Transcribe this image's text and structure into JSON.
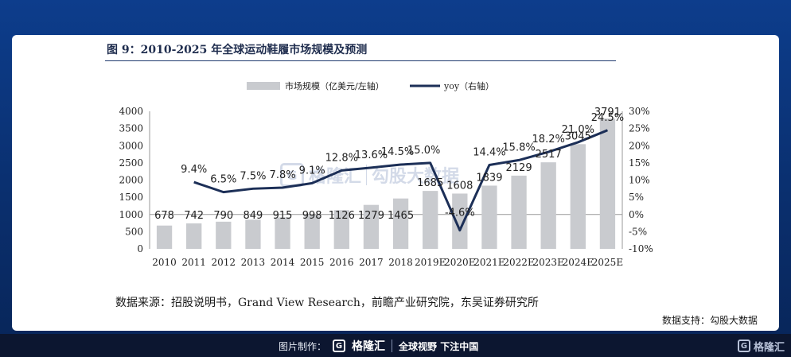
{
  "figure": {
    "title": "图 9：2010-2025 年全球运动鞋履市场规模及预测",
    "source": "数据来源：招股说明书，Grand View Research，前瞻产业研究院，东吴证券研究所",
    "support": "数据支持：勾股大数据"
  },
  "watermark": {
    "brand": "格隆汇",
    "sub": "勾股大数据"
  },
  "footer": {
    "made_by": "图片制作：",
    "logo_text": "格隆汇",
    "slogan": "全球视野 下注中国",
    "right_logo_text": "格隆汇"
  },
  "colors": {
    "bar": "#c9cbcf",
    "line": "#1c2f57",
    "background": "#0d3d8c"
  },
  "chart_data": {
    "type": "bar",
    "categories": [
      "2010",
      "2011",
      "2012",
      "2013",
      "2014",
      "2015",
      "2016",
      "2017",
      "2018",
      "2019E",
      "2020E",
      "2021E",
      "2022E",
      "2023E",
      "2024E",
      "2025E"
    ],
    "series": [
      {
        "name": "市场规模（亿美元/左轴）",
        "type": "bar",
        "axis": "left",
        "values": [
          678,
          742,
          790,
          849,
          915,
          998,
          1126,
          1279,
          1465,
          1685,
          1608,
          1839,
          2129,
          2517,
          3045,
          3791
        ],
        "labels": [
          "678",
          "742",
          "790",
          "849",
          "915",
          "998",
          "1126",
          "1279",
          "1465",
          "1685",
          "1608",
          "1839",
          "2129",
          "2517",
          "3045",
          "3791"
        ]
      },
      {
        "name": "yoy（右轴）",
        "type": "line",
        "axis": "right",
        "values": [
          null,
          9.4,
          6.5,
          7.5,
          7.8,
          9.1,
          12.8,
          13.6,
          14.5,
          15.0,
          -4.6,
          14.4,
          15.8,
          18.2,
          21.0,
          24.5
        ],
        "labels": [
          "",
          "9.4%",
          "6.5%",
          "7.5%",
          "7.8%",
          "9.1%",
          "12.8%",
          "13.6%",
          "14.5%",
          "15.0%",
          "-4.6%",
          "14.4%",
          "15.8%",
          "18.2%",
          "21.0%",
          "24.5%"
        ]
      }
    ],
    "y_left": {
      "min": 0,
      "max": 4000,
      "ticks": [
        "0",
        "500",
        "1000",
        "1500",
        "2000",
        "2500",
        "3000",
        "3500",
        "4000"
      ]
    },
    "y_right": {
      "min": -10,
      "max": 30,
      "ticks": [
        "-10%",
        "-5%",
        "0%",
        "5%",
        "10%",
        "15%",
        "20%",
        "25%",
        "30%"
      ]
    },
    "legend_position": "top",
    "grid": false
  }
}
